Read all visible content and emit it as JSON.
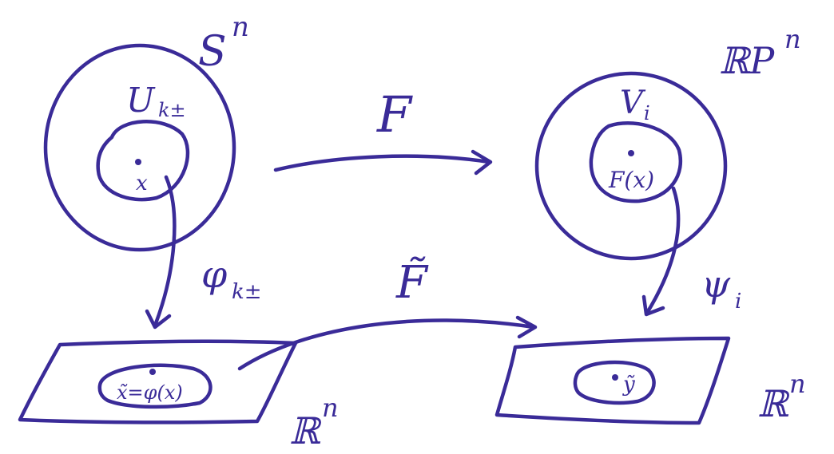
{
  "colors": {
    "ink": "#3a2b98",
    "background": "#ffffff"
  },
  "labels": {
    "sphere": "S",
    "sphere_sup": "n",
    "projective_space": "ℝP",
    "projective_space_sup": "n",
    "chart_domain": "U",
    "chart_domain_sub": "k±",
    "chart_domain_target": "V",
    "chart_domain_target_sub": "i",
    "point": "x",
    "image_point": "F(x)",
    "map": "F",
    "local_map": "F̃",
    "chart_map_left": "φ",
    "chart_map_left_sub": "k±",
    "chart_map_right": "ψ",
    "chart_map_right_sub": "i",
    "local_point_left": "x̃=φ(x)",
    "local_point_right": "ỹ",
    "euclidean_left": "ℝ",
    "euclidean_left_sup": "n",
    "euclidean_right": "ℝ",
    "euclidean_right_sup": "n"
  }
}
